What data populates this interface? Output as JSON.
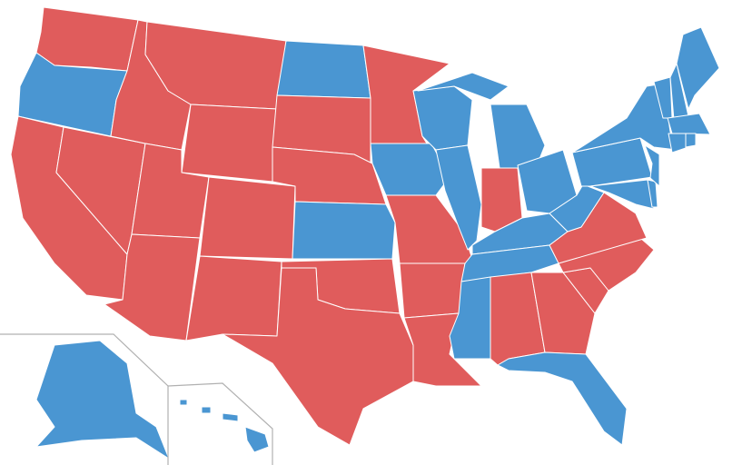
{
  "colors": {
    "red": "#e05c5c",
    "blue": "#4a96d2"
  },
  "states": [
    {
      "code": "WA",
      "color": "red"
    },
    {
      "code": "OR",
      "color": "blue"
    },
    {
      "code": "CA",
      "color": "red"
    },
    {
      "code": "NV",
      "color": "red"
    },
    {
      "code": "ID",
      "color": "red"
    },
    {
      "code": "MT",
      "color": "red"
    },
    {
      "code": "WY",
      "color": "red"
    },
    {
      "code": "UT",
      "color": "red"
    },
    {
      "code": "AZ",
      "color": "red"
    },
    {
      "code": "CO",
      "color": "red"
    },
    {
      "code": "NM",
      "color": "red"
    },
    {
      "code": "ND",
      "color": "blue"
    },
    {
      "code": "SD",
      "color": "red"
    },
    {
      "code": "NE",
      "color": "red"
    },
    {
      "code": "KS",
      "color": "blue"
    },
    {
      "code": "OK",
      "color": "red"
    },
    {
      "code": "TX",
      "color": "red"
    },
    {
      "code": "MN",
      "color": "red"
    },
    {
      "code": "IA",
      "color": "blue"
    },
    {
      "code": "MO",
      "color": "red"
    },
    {
      "code": "AR",
      "color": "red"
    },
    {
      "code": "LA",
      "color": "red"
    },
    {
      "code": "WI",
      "color": "blue"
    },
    {
      "code": "IL",
      "color": "blue"
    },
    {
      "code": "MI",
      "color": "blue"
    },
    {
      "code": "IN",
      "color": "red"
    },
    {
      "code": "OH",
      "color": "blue"
    },
    {
      "code": "KY",
      "color": "blue"
    },
    {
      "code": "TN",
      "color": "blue"
    },
    {
      "code": "MS",
      "color": "blue"
    },
    {
      "code": "AL",
      "color": "red"
    },
    {
      "code": "GA",
      "color": "red"
    },
    {
      "code": "FL",
      "color": "blue"
    },
    {
      "code": "SC",
      "color": "red"
    },
    {
      "code": "NC",
      "color": "red"
    },
    {
      "code": "VA",
      "color": "red"
    },
    {
      "code": "WV",
      "color": "blue"
    },
    {
      "code": "PA",
      "color": "blue"
    },
    {
      "code": "NY",
      "color": "blue"
    },
    {
      "code": "MD",
      "color": "blue"
    },
    {
      "code": "DE",
      "color": "blue"
    },
    {
      "code": "NJ",
      "color": "blue"
    },
    {
      "code": "VT",
      "color": "blue"
    },
    {
      "code": "NH",
      "color": "blue"
    },
    {
      "code": "ME",
      "color": "blue"
    },
    {
      "code": "MA",
      "color": "blue"
    },
    {
      "code": "CT",
      "color": "blue"
    },
    {
      "code": "RI",
      "color": "blue"
    },
    {
      "code": "AK",
      "color": "blue"
    },
    {
      "code": "HI",
      "color": "blue"
    }
  ]
}
